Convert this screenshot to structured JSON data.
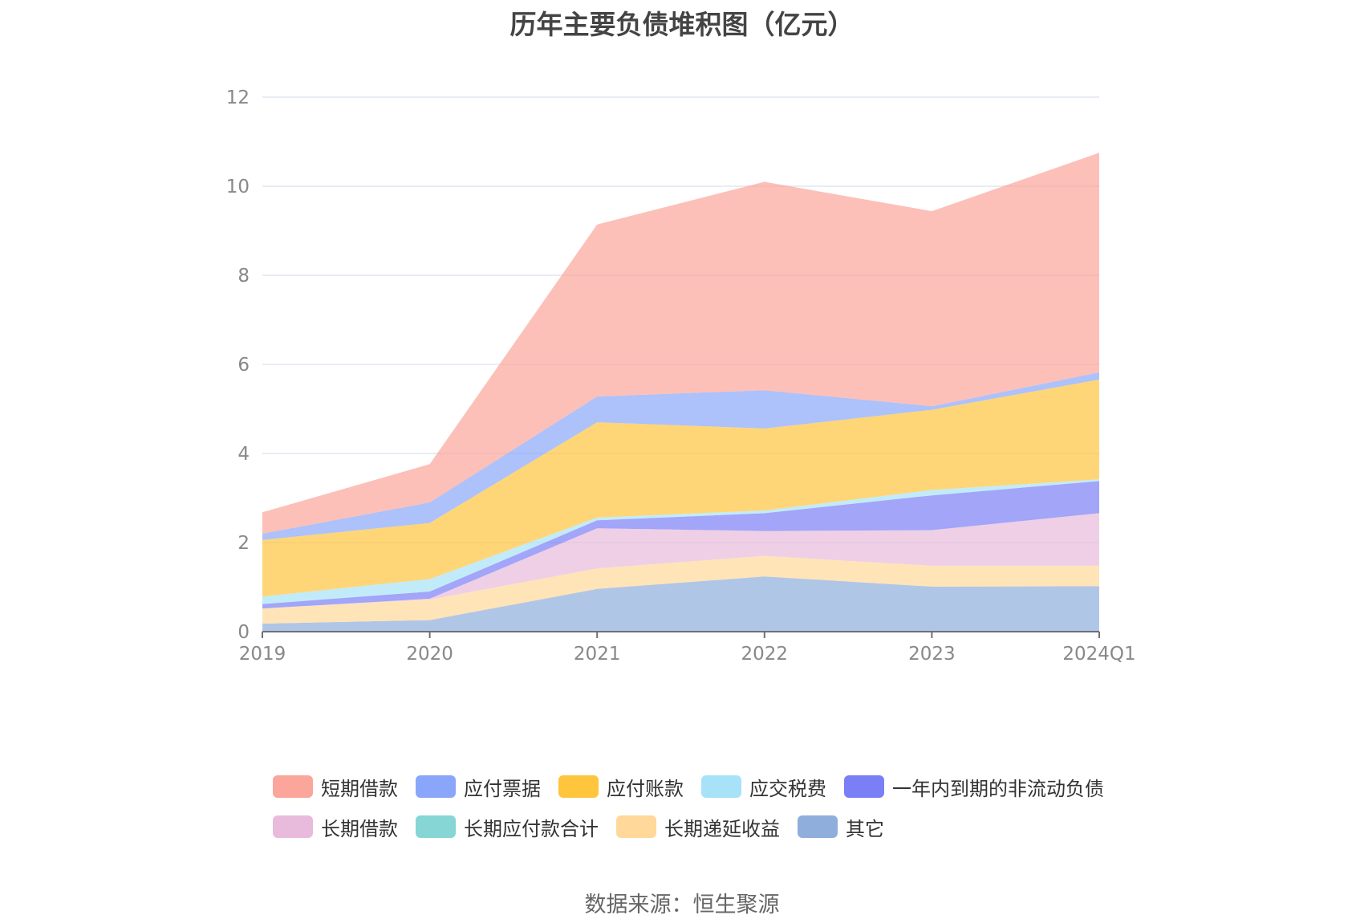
{
  "chart_data": {
    "type": "area",
    "stacked": true,
    "title": "历年主要负债堆积图（亿元）",
    "x": [
      "2019",
      "2020",
      "2021",
      "2022",
      "2023",
      "2024Q1"
    ],
    "ylim": [
      0,
      12
    ],
    "yticks": [
      0,
      2,
      4,
      6,
      8,
      10,
      12
    ],
    "grid": true,
    "legend_position": "bottom",
    "series": [
      {
        "name": "其它",
        "color": "#8faedc",
        "values": [
          0.18,
          0.26,
          0.96,
          1.24,
          1.01,
          1.02
        ]
      },
      {
        "name": "长期递延收益",
        "color": "#ffd89a",
        "values": [
          0.34,
          0.46,
          0.46,
          0.46,
          0.47,
          0.46
        ]
      },
      {
        "name": "长期应付款合计",
        "color": "#86d6d6",
        "values": [
          0.0,
          0.0,
          0.0,
          0.0,
          0.0,
          0.0
        ]
      },
      {
        "name": "长期借款",
        "color": "#e8bbdc",
        "values": [
          0.0,
          0.02,
          0.9,
          0.56,
          0.8,
          1.18
        ]
      },
      {
        "name": "一年内到期的非流动负债",
        "color": "#7b7ff5",
        "values": [
          0.1,
          0.16,
          0.18,
          0.4,
          0.78,
          0.72
        ]
      },
      {
        "name": "应交税费",
        "color": "#a8e2f8",
        "values": [
          0.17,
          0.28,
          0.06,
          0.06,
          0.12,
          0.04
        ]
      },
      {
        "name": "应付账款",
        "color": "#ffc53d",
        "values": [
          1.27,
          1.26,
          2.14,
          1.84,
          1.8,
          2.24
        ]
      },
      {
        "name": "应付票据",
        "color": "#8aa6fa",
        "values": [
          0.14,
          0.46,
          0.58,
          0.86,
          0.08,
          0.16
        ]
      },
      {
        "name": "短期借款",
        "color": "#fba59b",
        "values": [
          0.48,
          0.86,
          3.86,
          4.68,
          4.38,
          4.93
        ]
      }
    ]
  },
  "legend": {
    "rows": [
      [
        {
          "label": "短期借款",
          "color": "#fba59b"
        },
        {
          "label": "应付票据",
          "color": "#8aa6fa"
        },
        {
          "label": "应付账款",
          "color": "#ffc53d"
        },
        {
          "label": "应交税费",
          "color": "#a8e2f8"
        },
        {
          "label": "一年内到期的非流动负债",
          "color": "#7b7ff5"
        }
      ],
      [
        {
          "label": "长期借款",
          "color": "#e8bbdc"
        },
        {
          "label": "长期应付款合计",
          "color": "#86d6d6"
        },
        {
          "label": "长期递延收益",
          "color": "#ffd89a"
        },
        {
          "label": "其它",
          "color": "#8faedc"
        }
      ]
    ]
  },
  "source": "数据来源：恒生聚源"
}
